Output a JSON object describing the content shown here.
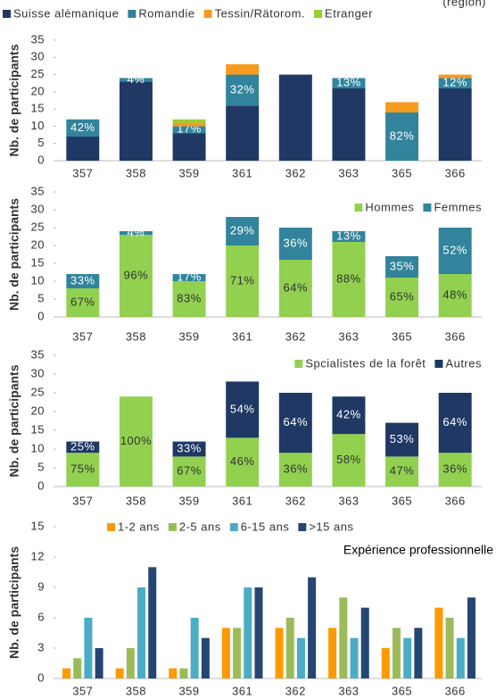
{
  "chart_data": [
    {
      "type": "stacked_bar",
      "annotation": "(région)",
      "ylabel": "Nb. de participants",
      "categories": [
        "357",
        "358",
        "359",
        "361",
        "362",
        "363",
        "365",
        "366"
      ],
      "ylim": [
        0,
        35
      ],
      "yticks": [
        0,
        5,
        10,
        15,
        20,
        25,
        30,
        35
      ],
      "legend": "top",
      "series": [
        {
          "name": "Suisse alémanique",
          "color": "#1f3864",
          "values": [
            7,
            23,
            8,
            16,
            25,
            21,
            0,
            21
          ]
        },
        {
          "name": "Romandie",
          "color": "#31849b",
          "values": [
            5,
            1,
            2,
            9,
            0,
            3,
            14,
            3
          ],
          "percent_labels": [
            "42%",
            "4%",
            "17%",
            "32%",
            null,
            "13%",
            "82%",
            "12%"
          ]
        },
        {
          "name": "Tessin/Rätorom.",
          "color": "#f79a1e",
          "values": [
            0,
            0,
            1,
            3,
            0,
            0,
            3,
            1
          ]
        },
        {
          "name": "Etranger",
          "color": "#9acd32",
          "values": [
            0,
            0,
            1,
            0,
            0,
            0,
            0,
            0
          ]
        }
      ]
    },
    {
      "type": "stacked_bar",
      "ylabel": "Nb. de participants",
      "categories": [
        "357",
        "358",
        "359",
        "361",
        "362",
        "363",
        "365",
        "366"
      ],
      "ylim": [
        0,
        35
      ],
      "yticks": [
        0,
        5,
        10,
        15,
        20,
        25,
        30,
        35
      ],
      "legend": "upper right",
      "series": [
        {
          "name": "Hommes",
          "color": "#92d050",
          "values": [
            8,
            23,
            10,
            20,
            16,
            21,
            11,
            12
          ],
          "percent_labels": [
            "67%",
            "96%",
            "83%",
            "71%",
            "64%",
            "88%",
            "65%",
            "48%"
          ]
        },
        {
          "name": "Femmes",
          "color": "#31849b",
          "values": [
            4,
            1,
            2,
            8,
            9,
            3,
            6,
            13
          ],
          "percent_labels": [
            "33%",
            "4%",
            "17%",
            "29%",
            "36%",
            "13%",
            "35%",
            "52%"
          ]
        }
      ]
    },
    {
      "type": "stacked_bar",
      "ylabel": "Nb. de participants",
      "categories": [
        "357",
        "358",
        "359",
        "361",
        "362",
        "363",
        "365",
        "366"
      ],
      "ylim": [
        0,
        35
      ],
      "yticks": [
        0,
        5,
        10,
        15,
        20,
        25,
        30,
        35
      ],
      "legend": "upper right",
      "series": [
        {
          "name": "Spcialistes de la forêt",
          "color": "#92d050",
          "values": [
            9,
            24,
            8,
            13,
            9,
            14,
            8,
            9
          ],
          "percent_labels": [
            "75%",
            "100%",
            "67%",
            "46%",
            "36%",
            "58%",
            "47%",
            "36%"
          ]
        },
        {
          "name": "Autres",
          "color": "#1f3864",
          "values": [
            3,
            0,
            4,
            15,
            16,
            10,
            9,
            16
          ],
          "percent_labels": [
            "25%",
            null,
            "33%",
            "54%",
            "64%",
            "42%",
            "53%",
            "64%"
          ]
        }
      ]
    },
    {
      "type": "bar",
      "title": "Expérience professionnelle",
      "ylabel": "Nb. de participants",
      "categories": [
        "357",
        "358",
        "359",
        "361",
        "362",
        "363",
        "365",
        "366"
      ],
      "ylim": [
        0,
        15
      ],
      "yticks": [
        0,
        3,
        6,
        9,
        12,
        15
      ],
      "legend": "top",
      "series": [
        {
          "name": "1-2 ans",
          "color": "#ff9900",
          "values": [
            1,
            1,
            1,
            5,
            5,
            5,
            3,
            7
          ]
        },
        {
          "name": "2-5 ans",
          "color": "#9bbb59",
          "values": [
            2,
            3,
            1,
            5,
            6,
            8,
            5,
            6
          ]
        },
        {
          "name": "6-15 ans",
          "color": "#4bacc6",
          "values": [
            6,
            9,
            6,
            9,
            4,
            4,
            4,
            4
          ]
        },
        {
          "name": ">15 ans",
          "color": "#254673",
          "values": [
            3,
            11,
            4,
            9,
            10,
            7,
            5,
            8
          ]
        }
      ]
    }
  ]
}
